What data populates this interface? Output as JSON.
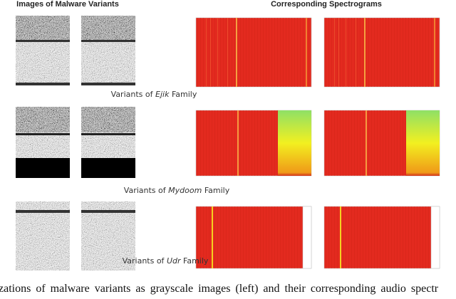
{
  "header": {
    "left": "Images of Malware Variants",
    "right": "Corresponding Spectrograms"
  },
  "families": [
    {
      "prefix": "Variants of",
      "name": "Ejik",
      "suffix": "Family"
    },
    {
      "prefix": "Variants of",
      "name": "Mydoom",
      "suffix": "Family"
    },
    {
      "prefix": "Variants of",
      "name": "Udr",
      "suffix": "Family"
    }
  ],
  "caption": "zations of malware variants as grayscale images (left) and their corresponding audio spectr"
}
